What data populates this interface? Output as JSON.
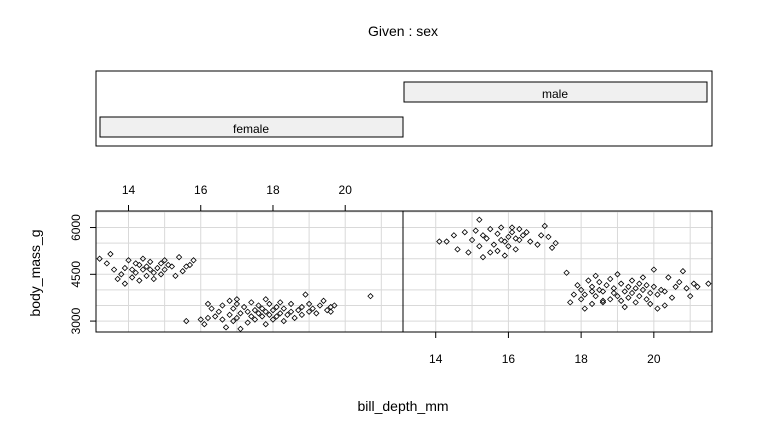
{
  "chart_data": {
    "type": "scatter",
    "title": "Given : sex",
    "xlabel": "bill_depth_mm",
    "ylabel": "body_mass_g",
    "xlim": [
      13.1,
      21.6
    ],
    "ylim": [
      2650,
      6530
    ],
    "xticks": [
      14,
      16,
      18,
      20
    ],
    "yticks": [
      3000,
      4500,
      6000
    ],
    "grid": true,
    "panels": [
      {
        "name": "female",
        "points": [
          [
            13.2,
            5000
          ],
          [
            13.4,
            4850
          ],
          [
            13.5,
            5150
          ],
          [
            13.6,
            4650
          ],
          [
            13.7,
            4350
          ],
          [
            13.8,
            4500
          ],
          [
            13.9,
            4200
          ],
          [
            13.9,
            4700
          ],
          [
            14.0,
            4950
          ],
          [
            14.1,
            4400
          ],
          [
            14.2,
            4550
          ],
          [
            14.2,
            4850
          ],
          [
            14.3,
            4300
          ],
          [
            14.4,
            4650
          ],
          [
            14.4,
            5000
          ],
          [
            14.5,
            4450
          ],
          [
            14.5,
            4750
          ],
          [
            14.6,
            4900
          ],
          [
            14.7,
            4550
          ],
          [
            14.7,
            4350
          ],
          [
            14.8,
            4700
          ],
          [
            14.9,
            4850
          ],
          [
            14.9,
            4500
          ],
          [
            15.0,
            4650
          ],
          [
            15.0,
            4950
          ],
          [
            15.1,
            4800
          ],
          [
            15.2,
            4750
          ],
          [
            15.3,
            4450
          ],
          [
            15.4,
            5050
          ],
          [
            15.5,
            4600
          ],
          [
            15.6,
            4750
          ],
          [
            15.7,
            4800
          ],
          [
            15.8,
            4950
          ],
          [
            14.3,
            4800
          ],
          [
            14.6,
            4650
          ],
          [
            14.1,
            4650
          ],
          [
            15.6,
            3000
          ],
          [
            16.0,
            3050
          ],
          [
            16.1,
            2900
          ],
          [
            16.2,
            3550
          ],
          [
            16.3,
            3400
          ],
          [
            16.4,
            3150
          ],
          [
            16.5,
            3300
          ],
          [
            16.6,
            3500
          ],
          [
            16.6,
            3050
          ],
          [
            16.7,
            2800
          ],
          [
            16.8,
            3200
          ],
          [
            16.8,
            3650
          ],
          [
            16.9,
            3000
          ],
          [
            16.9,
            3400
          ],
          [
            17.0,
            3100
          ],
          [
            17.0,
            3550
          ],
          [
            17.1,
            2750
          ],
          [
            17.1,
            3250
          ],
          [
            17.2,
            3450
          ],
          [
            17.3,
            3300
          ],
          [
            17.3,
            2950
          ],
          [
            17.4,
            3150
          ],
          [
            17.4,
            3600
          ],
          [
            17.5,
            3350
          ],
          [
            17.5,
            3050
          ],
          [
            17.6,
            3250
          ],
          [
            17.6,
            3500
          ],
          [
            17.7,
            3400
          ],
          [
            17.7,
            3150
          ],
          [
            17.8,
            2900
          ],
          [
            17.8,
            3300
          ],
          [
            17.9,
            3550
          ],
          [
            17.9,
            3200
          ],
          [
            18.0,
            3350
          ],
          [
            18.0,
            3050
          ],
          [
            18.1,
            3150
          ],
          [
            18.1,
            3450
          ],
          [
            18.2,
            3250
          ],
          [
            18.3,
            3400
          ],
          [
            18.3,
            3000
          ],
          [
            18.4,
            3200
          ],
          [
            18.5,
            3300
          ],
          [
            18.5,
            3550
          ],
          [
            18.6,
            3100
          ],
          [
            18.7,
            3350
          ],
          [
            18.8,
            3450
          ],
          [
            18.8,
            3200
          ],
          [
            18.9,
            3850
          ],
          [
            19.0,
            3300
          ],
          [
            19.0,
            3550
          ],
          [
            19.1,
            3400
          ],
          [
            19.2,
            3250
          ],
          [
            19.3,
            3500
          ],
          [
            19.4,
            3650
          ],
          [
            19.5,
            3350
          ],
          [
            19.6,
            3450
          ],
          [
            19.6,
            3300
          ],
          [
            19.7,
            3500
          ],
          [
            16.2,
            3100
          ],
          [
            17.0,
            3700
          ],
          [
            17.8,
            3700
          ],
          [
            18.2,
            3600
          ],
          [
            20.7,
            3800
          ]
        ]
      },
      {
        "name": "male",
        "points": [
          [
            14.1,
            5550
          ],
          [
            14.3,
            5550
          ],
          [
            14.5,
            5750
          ],
          [
            14.6,
            5300
          ],
          [
            14.8,
            5850
          ],
          [
            14.9,
            5200
          ],
          [
            15.0,
            5600
          ],
          [
            15.1,
            5900
          ],
          [
            15.2,
            5400
          ],
          [
            15.2,
            6250
          ],
          [
            15.3,
            5750
          ],
          [
            15.3,
            5050
          ],
          [
            15.4,
            5650
          ],
          [
            15.5,
            5200
          ],
          [
            15.5,
            5950
          ],
          [
            15.6,
            5450
          ],
          [
            15.7,
            5800
          ],
          [
            15.7,
            5250
          ],
          [
            15.8,
            5600
          ],
          [
            15.8,
            6000
          ],
          [
            15.9,
            5550
          ],
          [
            15.9,
            5100
          ],
          [
            16.0,
            5700
          ],
          [
            16.0,
            5400
          ],
          [
            16.1,
            5850
          ],
          [
            16.1,
            6000
          ],
          [
            16.2,
            5650
          ],
          [
            16.2,
            5300
          ],
          [
            16.3,
            5950
          ],
          [
            16.3,
            5600
          ],
          [
            16.4,
            5750
          ],
          [
            16.5,
            5850
          ],
          [
            16.6,
            5550
          ],
          [
            16.8,
            5450
          ],
          [
            16.9,
            5750
          ],
          [
            17.0,
            6050
          ],
          [
            17.1,
            5700
          ],
          [
            17.2,
            5350
          ],
          [
            17.3,
            5500
          ],
          [
            17.6,
            4550
          ],
          [
            17.9,
            4150
          ],
          [
            18.0,
            3700
          ],
          [
            18.0,
            4000
          ],
          [
            18.1,
            3850
          ],
          [
            18.2,
            4300
          ],
          [
            18.3,
            3950
          ],
          [
            18.3,
            4100
          ],
          [
            18.4,
            3800
          ],
          [
            18.4,
            4450
          ],
          [
            18.5,
            4000
          ],
          [
            18.5,
            4250
          ],
          [
            18.6,
            3650
          ],
          [
            18.6,
            3950
          ],
          [
            18.7,
            4150
          ],
          [
            18.8,
            3700
          ],
          [
            18.8,
            4350
          ],
          [
            18.9,
            3900
          ],
          [
            18.9,
            4050
          ],
          [
            19.0,
            3800
          ],
          [
            19.0,
            4500
          ],
          [
            19.1,
            3650
          ],
          [
            19.1,
            4200
          ],
          [
            19.2,
            3950
          ],
          [
            19.2,
            3450
          ],
          [
            19.3,
            4100
          ],
          [
            19.3,
            3750
          ],
          [
            19.4,
            4300
          ],
          [
            19.4,
            3900
          ],
          [
            19.5,
            4050
          ],
          [
            19.5,
            3600
          ],
          [
            19.6,
            4200
          ],
          [
            19.6,
            3800
          ],
          [
            19.7,
            4000
          ],
          [
            19.7,
            4400
          ],
          [
            19.8,
            3700
          ],
          [
            19.8,
            4150
          ],
          [
            19.9,
            3900
          ],
          [
            19.9,
            3550
          ],
          [
            20.0,
            4100
          ],
          [
            20.0,
            4650
          ],
          [
            20.1,
            3850
          ],
          [
            20.1,
            3400
          ],
          [
            20.2,
            4000
          ],
          [
            20.3,
            3950
          ],
          [
            20.4,
            4400
          ],
          [
            20.5,
            3750
          ],
          [
            20.6,
            4100
          ],
          [
            20.7,
            4250
          ],
          [
            20.8,
            4600
          ],
          [
            20.9,
            4050
          ],
          [
            21.0,
            3800
          ],
          [
            21.1,
            4200
          ],
          [
            21.2,
            4100
          ],
          [
            21.5,
            4200
          ],
          [
            17.7,
            3600
          ],
          [
            17.8,
            3850
          ],
          [
            18.1,
            3400
          ],
          [
            18.3,
            3550
          ],
          [
            18.6,
            3600
          ],
          [
            20.3,
            3500
          ]
        ]
      }
    ]
  }
}
